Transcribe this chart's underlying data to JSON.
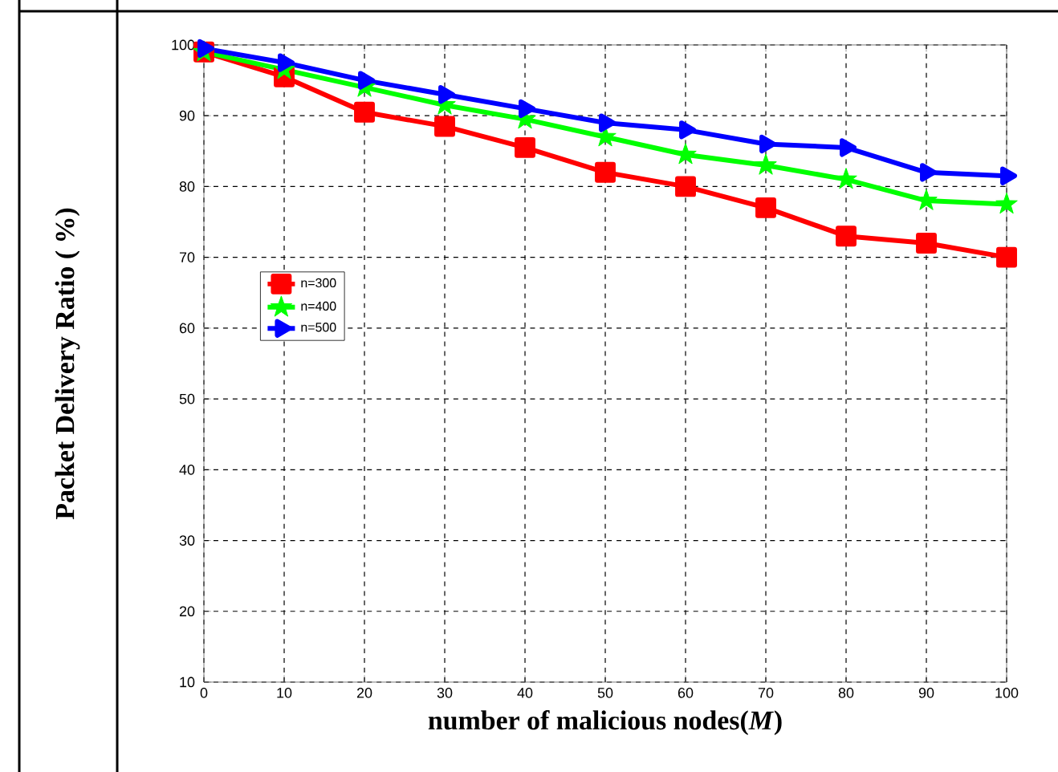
{
  "chart_data": {
    "type": "line",
    "xlabel": "number of malicious nodes(*M*)",
    "ylabel": "Packet Delivery Ratio ( %)",
    "x": [
      0,
      10,
      20,
      30,
      40,
      50,
      60,
      70,
      80,
      90,
      100
    ],
    "xlim": [
      0,
      100
    ],
    "xticks": [
      0,
      10,
      20,
      30,
      40,
      50,
      60,
      70,
      80,
      90,
      100
    ],
    "ylim": [
      10,
      100
    ],
    "yticks": [
      10,
      20,
      30,
      40,
      50,
      60,
      70,
      80,
      90,
      100
    ],
    "grid": true,
    "legend": "center left",
    "series": [
      {
        "name": "n=300",
        "color": "#ff0000",
        "marker": "square",
        "values": [
          99,
          95.5,
          90.5,
          88.5,
          85.5,
          82,
          80,
          77,
          73,
          72,
          70
        ]
      },
      {
        "name": "n=400",
        "color": "#00ff00",
        "marker": "star",
        "values": [
          99,
          96.5,
          94,
          91.5,
          89.5,
          87,
          84.5,
          83,
          81,
          78,
          77.5
        ]
      },
      {
        "name": "n=500",
        "color": "#0000ff",
        "marker": "triangle",
        "values": [
          99.5,
          97.5,
          95,
          93,
          91,
          89,
          88,
          86,
          85.5,
          82,
          81.5
        ]
      }
    ]
  }
}
